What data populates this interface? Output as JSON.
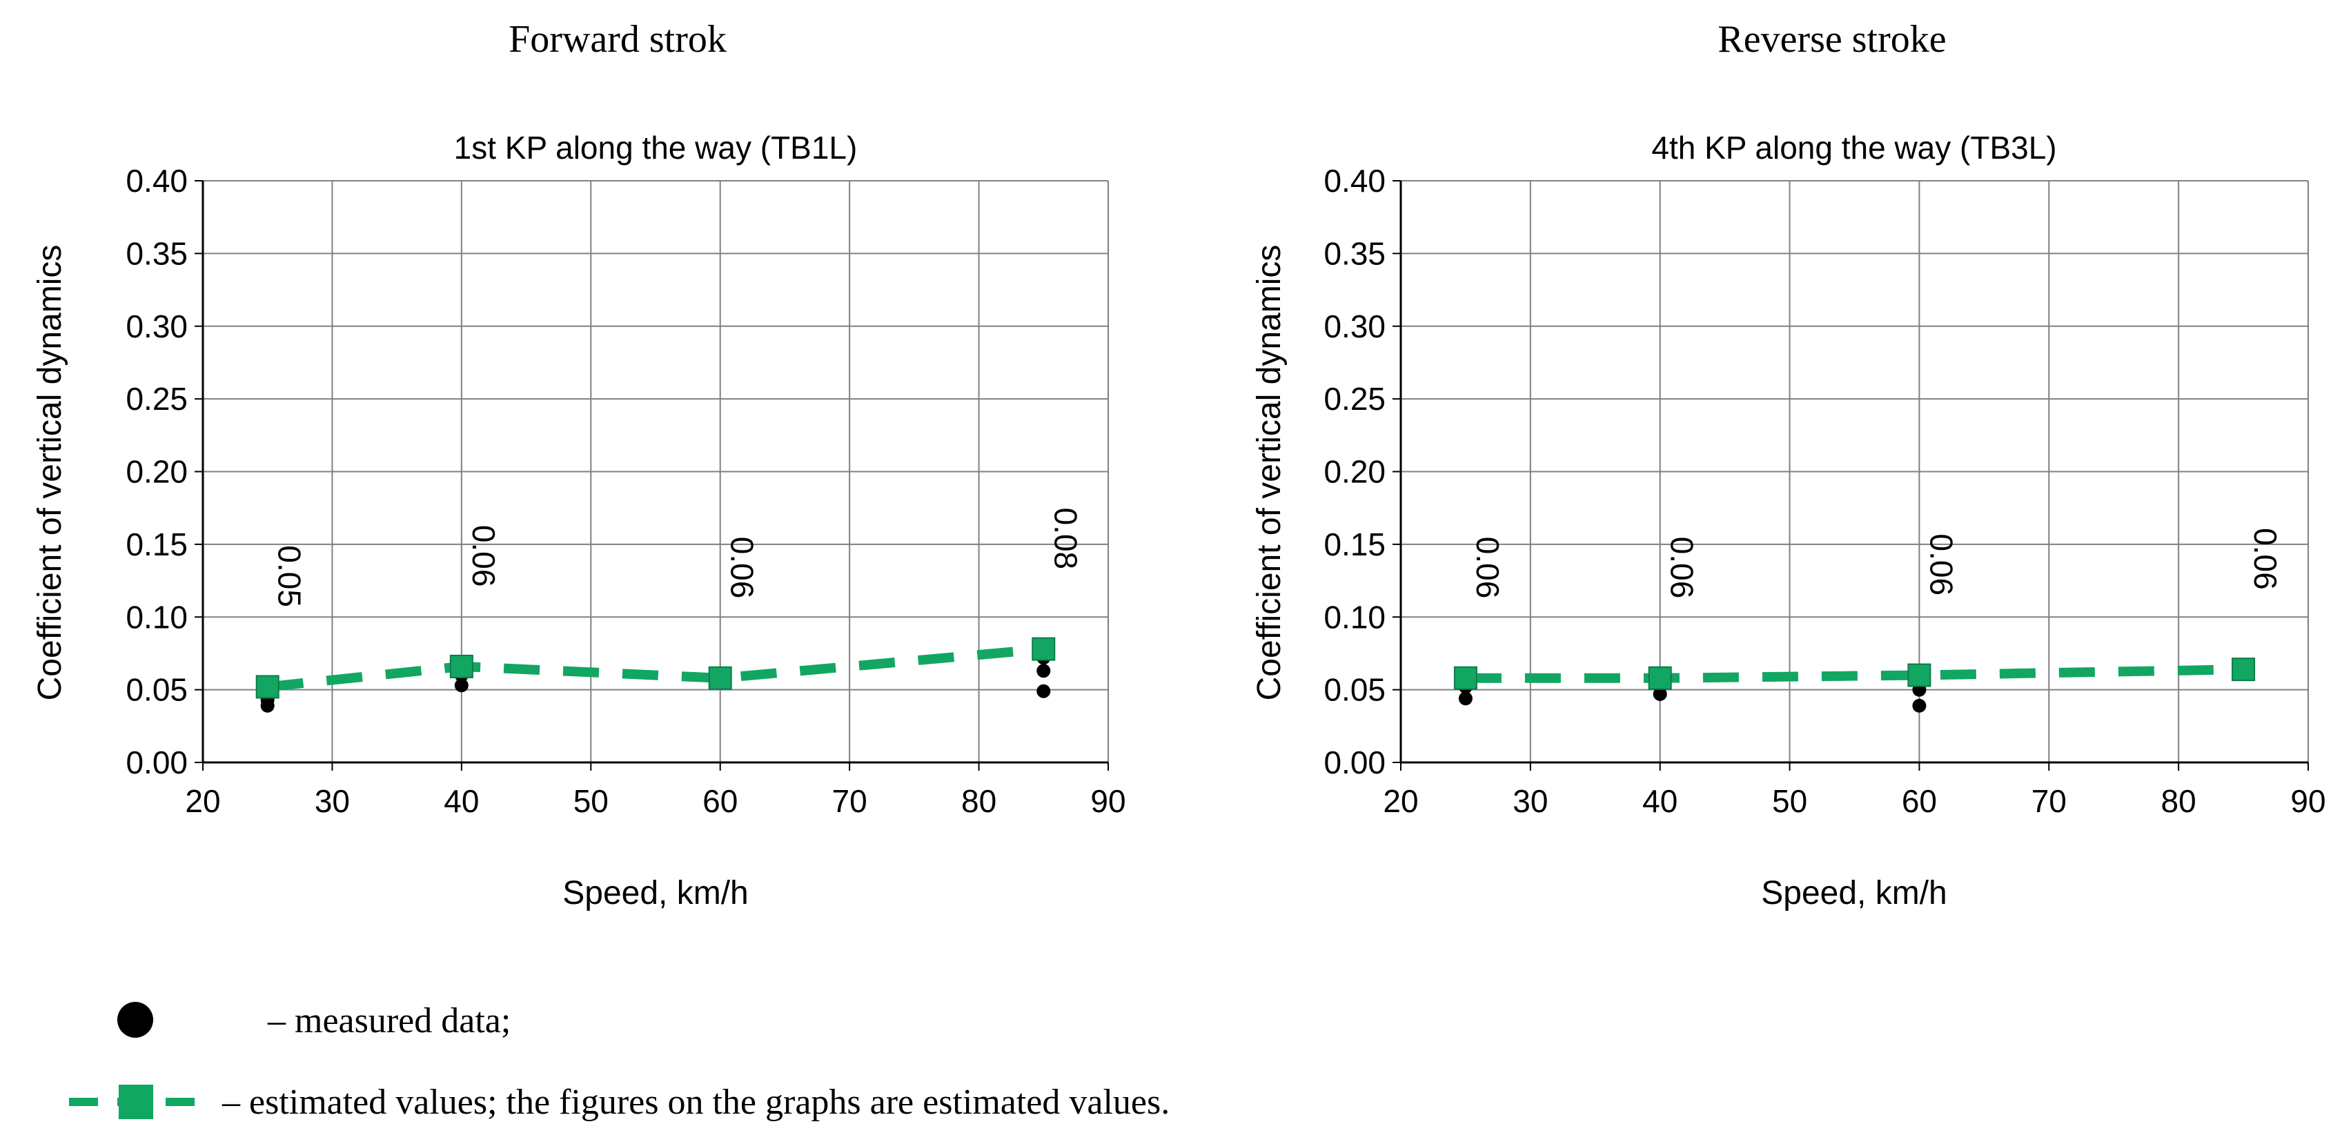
{
  "headers": [
    "Forward strok",
    "Reverse stroke"
  ],
  "legend": {
    "measured_label": "– measured data;",
    "estimated_label": "– estimated values; the figures on the graphs are estimated values."
  },
  "colors": {
    "estimated": "#12a663",
    "measured": "#000000",
    "grid": "#808080"
  },
  "chart_data": [
    {
      "type": "scatter",
      "title": "1st KP along the way (TB1L)",
      "xlabel": "Speed, km/h",
      "ylabel": "Coefficient of vertical dynamics",
      "xlim": [
        20,
        90
      ],
      "ylim": [
        0,
        0.4
      ],
      "x_ticks": [
        20,
        30,
        40,
        50,
        60,
        70,
        80,
        90
      ],
      "y_ticks": [
        0,
        0.05,
        0.1,
        0.15,
        0.2,
        0.25,
        0.3,
        0.35,
        0.4
      ],
      "x_tick_labels": [
        "20",
        "30",
        "40",
        "50",
        "60",
        "70",
        "80",
        "90"
      ],
      "y_tick_labels": [
        "0.00",
        "0.05",
        "0.10",
        "0.15",
        "0.20",
        "0.25",
        "0.30",
        "0.35",
        "0.40"
      ],
      "grid": true,
      "series": [
        {
          "name": "measured data",
          "points": [
            {
              "x": 25,
              "y": 0.039
            },
            {
              "x": 25,
              "y": 0.043
            },
            {
              "x": 25,
              "y": 0.048
            },
            {
              "x": 40,
              "y": 0.053
            },
            {
              "x": 40,
              "y": 0.06
            },
            {
              "x": 60,
              "y": 0.057
            },
            {
              "x": 85,
              "y": 0.049
            },
            {
              "x": 85,
              "y": 0.063
            },
            {
              "x": 85,
              "y": 0.072
            }
          ]
        },
        {
          "name": "estimated values",
          "points": [
            {
              "x": 25,
              "y": 0.052
            },
            {
              "x": 40,
              "y": 0.066
            },
            {
              "x": 60,
              "y": 0.058
            },
            {
              "x": 85,
              "y": 0.078
            }
          ],
          "labels": [
            "0.05",
            "0.06",
            "0.06",
            "0.08"
          ]
        }
      ]
    },
    {
      "type": "scatter",
      "title": "4th KP along the way (TB3L)",
      "xlabel": "Speed, km/h",
      "ylabel": "Coefficient of vertical dynamics",
      "xlim": [
        20,
        90
      ],
      "ylim": [
        0,
        0.4
      ],
      "x_ticks": [
        20,
        30,
        40,
        50,
        60,
        70,
        80,
        90
      ],
      "y_ticks": [
        0,
        0.05,
        0.1,
        0.15,
        0.2,
        0.25,
        0.3,
        0.35,
        0.4
      ],
      "x_tick_labels": [
        "20",
        "30",
        "40",
        "50",
        "60",
        "70",
        "80",
        "90"
      ],
      "y_tick_labels": [
        "0.00",
        "0.05",
        "0.10",
        "0.15",
        "0.20",
        "0.25",
        "0.30",
        "0.35",
        "0.40"
      ],
      "grid": true,
      "series": [
        {
          "name": "measured data",
          "points": [
            {
              "x": 25,
              "y": 0.044
            },
            {
              "x": 25,
              "y": 0.052
            },
            {
              "x": 25,
              "y": 0.06
            },
            {
              "x": 40,
              "y": 0.047
            },
            {
              "x": 40,
              "y": 0.055
            },
            {
              "x": 60,
              "y": 0.039
            },
            {
              "x": 60,
              "y": 0.05
            },
            {
              "x": 60,
              "y": 0.058
            }
          ]
        },
        {
          "name": "estimated values",
          "points": [
            {
              "x": 25,
              "y": 0.058
            },
            {
              "x": 40,
              "y": 0.058
            },
            {
              "x": 60,
              "y": 0.06
            },
            {
              "x": 85,
              "y": 0.064
            }
          ],
          "labels": [
            "0.06",
            "0.06",
            "0.06",
            "0.06"
          ]
        }
      ]
    }
  ]
}
